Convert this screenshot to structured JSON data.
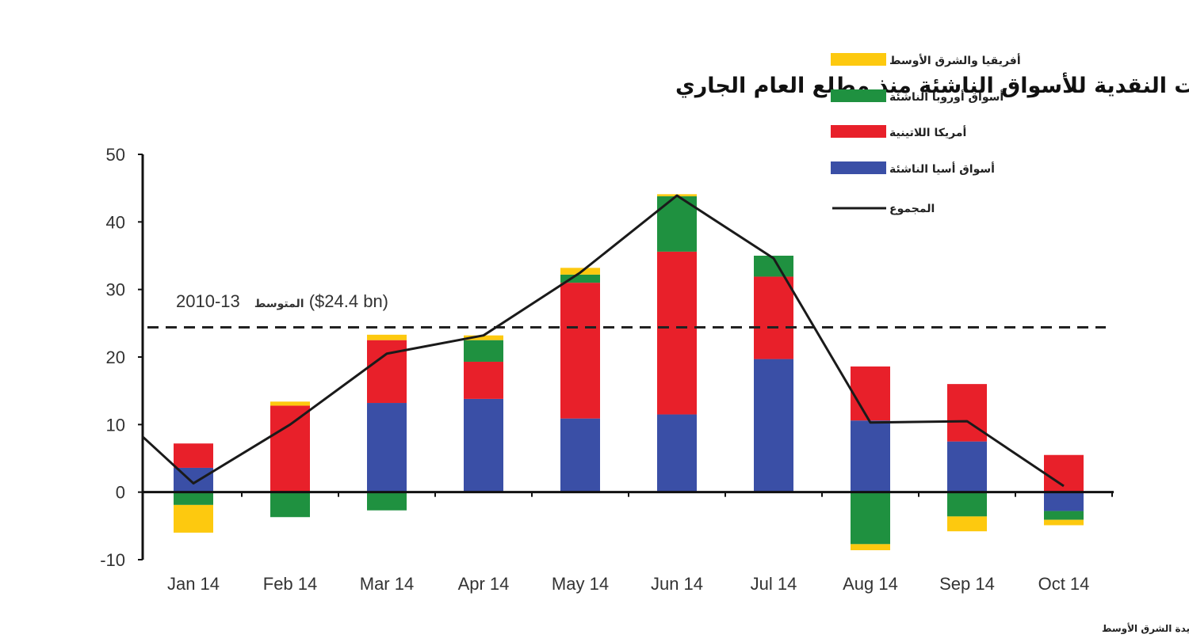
{
  "chart_data": {
    "type": "bar",
    "stacked": true,
    "title": "حركة التدفقات النقدية للأسواق الناشئة منذ مطلع العام الجاري",
    "categories": [
      "Jan 14",
      "Feb 14",
      "Mar 14",
      "Apr 14",
      "May 14",
      "Jun 14",
      "Jul 14",
      "Aug 14",
      "Sep 14",
      "Oct 14"
    ],
    "ylim": [
      -10,
      50
    ],
    "yticks": [
      -10,
      0,
      10,
      20,
      30,
      40,
      50
    ],
    "grid": false,
    "legend_placement": "top-right",
    "series": [
      {
        "name": "أسواق أسيا الناشئة",
        "color": "#3a4fa6",
        "values": [
          3.6,
          0,
          13.2,
          13.8,
          10.9,
          11.5,
          19.7,
          10.6,
          7.5,
          -2.8
        ]
      },
      {
        "name": "أمريكا اللاتينية",
        "color": "#e8202a",
        "values": [
          3.6,
          12.8,
          9.3,
          5.5,
          20.1,
          24.1,
          12.2,
          8.0,
          8.5,
          5.5
        ]
      },
      {
        "name": "أسواق أوروبا الناشئة",
        "color": "#1f9140",
        "values": [
          -1.9,
          -3.7,
          -2.7,
          3.2,
          1.2,
          8.2,
          3.1,
          -7.7,
          -3.6,
          -1.3
        ]
      },
      {
        "name": "أفريقيا والشرق الأوسط",
        "color": "#fdc90f",
        "values": [
          -4.1,
          0.6,
          0.8,
          0.7,
          1.0,
          0.3,
          0,
          -0.9,
          -2.2,
          -0.8
        ]
      }
    ],
    "line_series": {
      "name": "المجموع",
      "color": "#1a1a1a",
      "start_value": 8.2,
      "values": [
        1.3,
        10.0,
        20.5,
        23.2,
        32.5,
        43.9,
        34.6,
        10.3,
        10.5,
        0.9
      ]
    },
    "reference_line": {
      "value": 24.4,
      "label_prefix": "2010-13",
      "label_word": "المتوسط",
      "label_value": "($24.4 bn)"
    },
    "source": "المصدر : صندوق النقد الدولي، معهد الصيرفة العالمي، الوحدة الاقتصادية بجريدة الشرق الأوسط"
  }
}
